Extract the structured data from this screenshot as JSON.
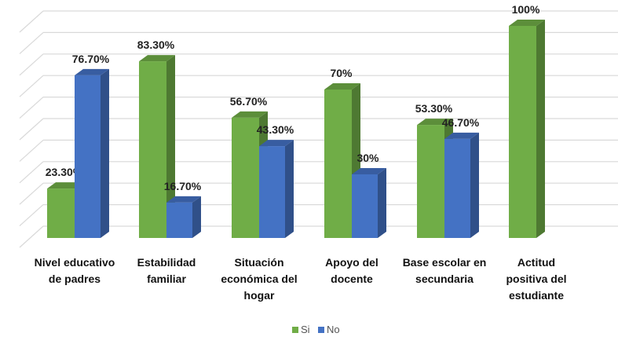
{
  "chart_data": {
    "type": "bar",
    "style": "3d-clustered-column",
    "categories": [
      [
        "Nivel educativo",
        "de padres"
      ],
      [
        "Estabilidad",
        "familiar"
      ],
      [
        "Situación",
        "económica del",
        "hogar"
      ],
      [
        "Apoyo del",
        "docente"
      ],
      [
        "Base escolar en",
        "secundaria"
      ],
      [
        "Actitud",
        "positiva del",
        "estudiante"
      ]
    ],
    "series": [
      {
        "name": "Si",
        "color": "#70AD47",
        "values": [
          23.3,
          83.3,
          56.7,
          70,
          53.3,
          100
        ],
        "labels": [
          "23.30%",
          "83.30%",
          "56.70%",
          "70%",
          "53.30%",
          "100%"
        ]
      },
      {
        "name": "No",
        "color": "#4472C4",
        "values": [
          76.7,
          16.7,
          43.3,
          30,
          46.7,
          null
        ],
        "labels": [
          "76.70%",
          "16.70%",
          "43.30%",
          "30%",
          "46.70%",
          ""
        ]
      }
    ],
    "ylim": [
      0,
      100
    ],
    "grid": true,
    "legend": "bottom",
    "unit": "%"
  }
}
